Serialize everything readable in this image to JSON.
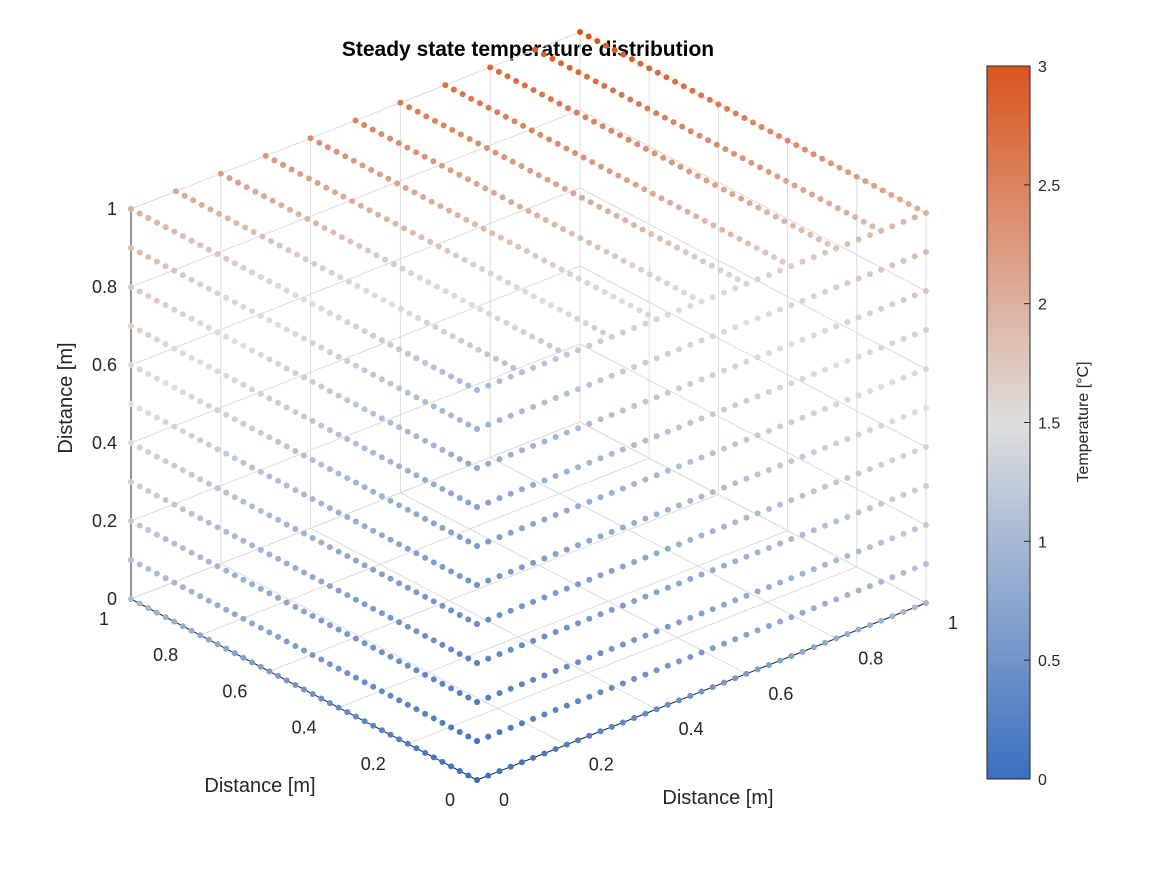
{
  "chart_data": {
    "type": "scatter",
    "subtype": "scatter3",
    "title": "Steady state temperature distribution",
    "xlabel": "Distance [m]",
    "ylabel": "Distance [m]",
    "zlabel": "Distance [m]",
    "xlim": [
      0,
      1
    ],
    "ylim": [
      0,
      1
    ],
    "zlim": [
      0,
      1
    ],
    "xticks": [
      "0",
      "0.2",
      "0.4",
      "0.6",
      "0.8",
      "1"
    ],
    "yticks": [
      "0",
      "0.2",
      "0.4",
      "0.6",
      "0.8",
      "1"
    ],
    "zticks": [
      "0",
      "0.2",
      "0.4",
      "0.6",
      "0.8",
      "1"
    ],
    "grid": true,
    "points_description": "Temperature on the three visible faces of the unit cube (x=0 side, y=0 side, z=1 top); point value rises with height",
    "grid_levels": [
      0,
      0.1,
      0.2,
      0.3,
      0.4,
      0.5,
      0.6,
      0.7,
      0.8,
      0.9,
      1.0
    ],
    "temperature_model": {
      "min": 0,
      "max": 3,
      "formula": "T = 3 * (x + y + z) / 3 mapped to level shells"
    },
    "colorbar": {
      "label": "Temperature [°C]",
      "range": [
        0,
        3
      ],
      "ticks": [
        "0",
        "0.5",
        "1",
        "1.5",
        "2",
        "2.5",
        "3"
      ],
      "colors": {
        "low": "#3a6fbf",
        "mid": "#dedede",
        "high": "#d9541e"
      }
    },
    "colors": {
      "grid": "#dcdcdc",
      "axis": "#262626"
    }
  }
}
